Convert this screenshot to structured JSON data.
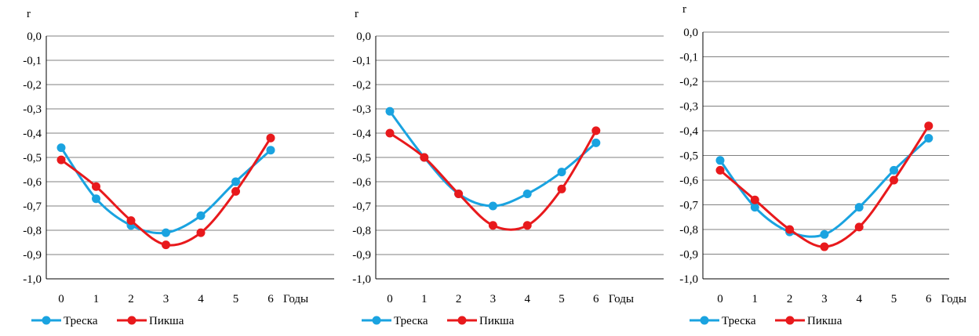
{
  "colors": {
    "cod": "#1aa3e0",
    "haddock": "#e8191c",
    "grid": "#808080",
    "axis": "#000000"
  },
  "chart_data": [
    {
      "type": "line",
      "ylabel": "r",
      "xlabel": "Годы",
      "categories": [
        "0",
        "1",
        "2",
        "3",
        "4",
        "5",
        "6"
      ],
      "ylim": [
        -1.0,
        0.0
      ],
      "ytick_labels": [
        "0,0",
        "-0,1",
        "-0,2",
        "-0,3",
        "-0,4",
        "-0,5",
        "-0,6",
        "-0,7",
        "-0,8",
        "-0,9",
        "-1,0"
      ],
      "grid": true,
      "legend": "bottom",
      "series": [
        {
          "name": "Треска",
          "color_key": "cod",
          "values": [
            -0.46,
            -0.67,
            -0.78,
            -0.81,
            -0.74,
            -0.6,
            -0.47
          ]
        },
        {
          "name": "Пикша",
          "color_key": "haddock",
          "values": [
            -0.51,
            -0.62,
            -0.76,
            -0.86,
            -0.81,
            -0.64,
            -0.42
          ]
        }
      ]
    },
    {
      "type": "line",
      "ylabel": "r",
      "xlabel": "Годы",
      "categories": [
        "0",
        "1",
        "2",
        "3",
        "4",
        "5",
        "6"
      ],
      "ylim": [
        -1.0,
        0.0
      ],
      "ytick_labels": [
        "0,0",
        "-0,1",
        "-0,2",
        "-0,3",
        "-0,4",
        "-0,5",
        "-0,6",
        "-0,7",
        "-0,8",
        "-0,9",
        "-1,0"
      ],
      "grid": true,
      "legend": "bottom",
      "series": [
        {
          "name": "Треска",
          "color_key": "cod",
          "values": [
            -0.31,
            -0.5,
            -0.65,
            -0.7,
            -0.65,
            -0.56,
            -0.44
          ]
        },
        {
          "name": "Пикша",
          "color_key": "haddock",
          "values": [
            -0.4,
            -0.5,
            -0.65,
            -0.78,
            -0.78,
            -0.63,
            -0.39
          ]
        }
      ]
    },
    {
      "type": "line",
      "ylabel": "r",
      "xlabel": "Годы",
      "categories": [
        "0",
        "1",
        "2",
        "3",
        "4",
        "5",
        "6"
      ],
      "ylim": [
        -1.0,
        0.0
      ],
      "ytick_labels": [
        "0,0",
        "-0,1",
        "-0,2",
        "-0,3",
        "-0,4",
        "-0,5",
        "-0,6",
        "-0,7",
        "-0,8",
        "-0,9",
        "-1,0"
      ],
      "grid": true,
      "legend": "bottom",
      "series": [
        {
          "name": "Треска",
          "color_key": "cod",
          "values": [
            -0.52,
            -0.71,
            -0.81,
            -0.82,
            -0.71,
            -0.56,
            -0.43
          ]
        },
        {
          "name": "Пикша",
          "color_key": "haddock",
          "values": [
            -0.56,
            -0.68,
            -0.8,
            -0.87,
            -0.79,
            -0.6,
            -0.38
          ]
        }
      ]
    }
  ]
}
